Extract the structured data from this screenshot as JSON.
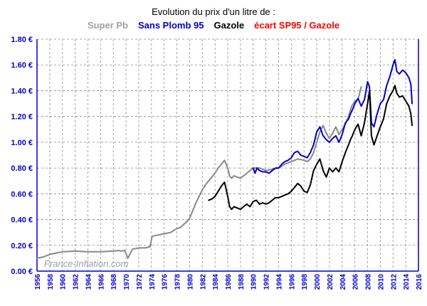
{
  "chart_data": {
    "type": "line",
    "title": "Evolution du prix d'un litre de :",
    "legend": [
      {
        "label": "Super Pb",
        "color": "#a0a0a0",
        "bold": false
      },
      {
        "label": "Sans Plomb 95",
        "color": "#0000cc",
        "bold": true
      },
      {
        "label": "Gazole",
        "color": "#000000",
        "bold": true
      },
      {
        "label": "écart SP95 / Gazole",
        "color": "#ff0000",
        "bold": true
      }
    ],
    "xlim": [
      1956,
      2016
    ],
    "ylim": [
      0,
      1.8
    ],
    "x_ticks": [
      "1956",
      "1958",
      "1960",
      "1962",
      "1964",
      "1966",
      "1968",
      "1970",
      "1972",
      "1974",
      "1976",
      "1978",
      "1980",
      "1982",
      "1984",
      "1986",
      "1988",
      "1990",
      "1992",
      "1994",
      "1996",
      "1998",
      "2000",
      "2002",
      "2004",
      "2006",
      "2008",
      "2010",
      "2012",
      "2014",
      "2016"
    ],
    "y_ticks": [
      {
        "value": 0,
        "label": "0.00 €"
      },
      {
        "value": 0.2,
        "label": "0.20 €"
      },
      {
        "value": 0.4,
        "label": "0.40 €"
      },
      {
        "value": 0.6,
        "label": "0.60 €"
      },
      {
        "value": 0.8,
        "label": "0.80 €"
      },
      {
        "value": 1.0,
        "label": "1.00 €"
      },
      {
        "value": 1.2,
        "label": "1.20 €"
      },
      {
        "value": 1.4,
        "label": "1.40 €"
      },
      {
        "value": 1.6,
        "label": "1.60 €"
      },
      {
        "value": 1.8,
        "label": "1.80 €"
      }
    ],
    "grid": true,
    "watermark": "France-Inflation.com",
    "series": [
      {
        "name": "Super Pb",
        "color": "#888888",
        "x": [
          1956,
          1957,
          1958,
          1959,
          1960,
          1962,
          1964,
          1966,
          1968,
          1968.8,
          1969.2,
          1969.8,
          1970.3,
          1971,
          1972,
          1973,
          1973.8,
          1974.1,
          1975,
          1976,
          1977,
          1978,
          1978.6,
          1979,
          1979.5,
          1980,
          1980.5,
          1981,
          1981.5,
          1982,
          1982.5,
          1983,
          1983.5,
          1984,
          1984.5,
          1985,
          1985.5,
          1986,
          1986.3,
          1986.6,
          1987,
          1988,
          1989,
          1990,
          1991,
          1992,
          1993,
          1994,
          1995,
          1996,
          1997,
          1998,
          1998.5,
          1999,
          1999.5,
          2000,
          2000.5,
          2001,
          2001.5,
          2002,
          2002.5,
          2003,
          2003.5,
          2004,
          2004.5,
          2005,
          2005.5,
          2006,
          2006.5,
          2007
        ],
        "y": [
          0.1,
          0.11,
          0.13,
          0.14,
          0.15,
          0.155,
          0.15,
          0.15,
          0.155,
          0.16,
          0.155,
          0.16,
          0.1,
          0.17,
          0.18,
          0.18,
          0.19,
          0.27,
          0.28,
          0.29,
          0.3,
          0.33,
          0.34,
          0.36,
          0.38,
          0.41,
          0.47,
          0.53,
          0.58,
          0.63,
          0.67,
          0.7,
          0.73,
          0.76,
          0.8,
          0.83,
          0.86,
          0.8,
          0.74,
          0.72,
          0.74,
          0.72,
          0.76,
          0.8,
          0.8,
          0.78,
          0.79,
          0.8,
          0.83,
          0.85,
          0.87,
          0.86,
          0.85,
          0.87,
          0.92,
          1.0,
          1.08,
          1.13,
          1.07,
          1.03,
          1.07,
          1.12,
          1.06,
          1.1,
          1.14,
          1.2,
          1.28,
          1.32,
          1.33,
          1.43
        ]
      },
      {
        "name": "Sans Plomb 95",
        "color": "#0000cc",
        "x": [
          1990,
          1990.3,
          1990.6,
          1991,
          1991.5,
          1992,
          1992.5,
          1993,
          1993.5,
          1994,
          1994.5,
          1995,
          1995.5,
          1996,
          1996.5,
          1997,
          1997.5,
          1998,
          1998.5,
          1999,
          1999.5,
          2000,
          2000.5,
          2001,
          2001.5,
          2002,
          2002.5,
          2003,
          2003.5,
          2004,
          2004.5,
          2005,
          2005.3,
          2005.6,
          2006,
          2006.5,
          2007,
          2007.5,
          2008,
          2008.3,
          2008.6,
          2009,
          2009.5,
          2010,
          2010.5,
          2011,
          2011.5,
          2012,
          2012.3,
          2012.6,
          2013,
          2013.5,
          2014,
          2014.5,
          2014.8,
          2015
        ],
        "y": [
          0.8,
          0.76,
          0.8,
          0.78,
          0.77,
          0.77,
          0.76,
          0.78,
          0.8,
          0.8,
          0.83,
          0.85,
          0.86,
          0.88,
          0.92,
          0.93,
          0.9,
          0.89,
          0.88,
          0.92,
          0.98,
          1.08,
          1.12,
          1.05,
          1.02,
          1.0,
          1.03,
          1.05,
          1.0,
          1.06,
          1.15,
          1.18,
          1.22,
          1.25,
          1.3,
          1.34,
          1.28,
          1.33,
          1.47,
          1.43,
          1.15,
          1.12,
          1.22,
          1.3,
          1.33,
          1.44,
          1.51,
          1.6,
          1.64,
          1.55,
          1.53,
          1.56,
          1.54,
          1.5,
          1.45,
          1.3
        ]
      },
      {
        "name": "Gazole",
        "color": "#000000",
        "x": [
          1983,
          1983.5,
          1984,
          1984.5,
          1985,
          1985.5,
          1986,
          1986.3,
          1986.6,
          1987,
          1987.5,
          1988,
          1988.5,
          1989,
          1989.5,
          1990,
          1990.5,
          1991,
          1991.5,
          1992,
          1992.5,
          1993,
          1993.5,
          1994,
          1994.5,
          1995,
          1995.5,
          1996,
          1996.5,
          1997,
          1997.5,
          1998,
          1998.5,
          1999,
          1999.5,
          2000,
          2000.5,
          2001,
          2001.5,
          2002,
          2002.5,
          2003,
          2003.5,
          2004,
          2004.5,
          2005,
          2005.3,
          2005.6,
          2006,
          2006.5,
          2007,
          2007.5,
          2008,
          2008.3,
          2008.6,
          2009,
          2009.5,
          2010,
          2010.5,
          2011,
          2011.5,
          2012,
          2012.3,
          2012.6,
          2013,
          2013.5,
          2014,
          2014.5,
          2014.8,
          2015
        ],
        "y": [
          0.55,
          0.56,
          0.58,
          0.62,
          0.66,
          0.69,
          0.58,
          0.5,
          0.48,
          0.5,
          0.49,
          0.48,
          0.5,
          0.52,
          0.5,
          0.54,
          0.55,
          0.52,
          0.53,
          0.52,
          0.53,
          0.55,
          0.57,
          0.57,
          0.58,
          0.59,
          0.6,
          0.62,
          0.65,
          0.68,
          0.66,
          0.62,
          0.61,
          0.67,
          0.78,
          0.83,
          0.87,
          0.78,
          0.73,
          0.8,
          0.77,
          0.8,
          0.77,
          0.85,
          0.92,
          0.98,
          1.02,
          1.05,
          1.1,
          1.14,
          1.05,
          1.15,
          1.3,
          1.4,
          1.05,
          0.98,
          1.05,
          1.12,
          1.18,
          1.3,
          1.36,
          1.4,
          1.44,
          1.38,
          1.35,
          1.36,
          1.32,
          1.28,
          1.22,
          1.13
        ]
      }
    ]
  }
}
